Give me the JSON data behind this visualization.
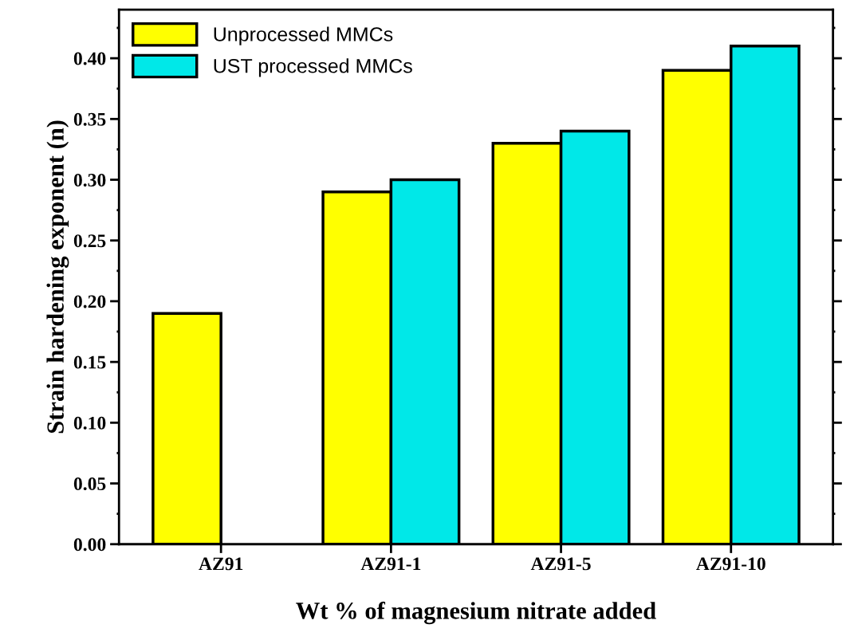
{
  "chart_data": {
    "type": "bar",
    "xlabel": "Wt % of magnesium nitrate added",
    "ylabel": "Strain hardening exponent (n)",
    "categories": [
      "AZ91",
      "AZ91-1",
      "AZ91-5",
      "AZ91-10"
    ],
    "series": [
      {
        "name": "Unprocessed MMCs",
        "color": "#ffff00",
        "values": [
          0.19,
          0.29,
          0.33,
          0.39
        ]
      },
      {
        "name": "UST processed MMCs",
        "color": "#00e8e8",
        "values": [
          null,
          0.3,
          0.34,
          0.41
        ]
      }
    ],
    "ylim": [
      0,
      0.44
    ],
    "yticks": [
      {
        "value": 0,
        "label": "0.00"
      },
      0.05,
      {
        "value": 0.1,
        "label": "0.10"
      },
      0.15,
      {
        "value": 0.2,
        "label": "0.20"
      },
      0.25,
      {
        "value": 0.3,
        "label": "0.30"
      },
      0.35,
      {
        "value": 0.4,
        "label": "0.40"
      }
    ],
    "grid": false,
    "legend": "top left"
  }
}
